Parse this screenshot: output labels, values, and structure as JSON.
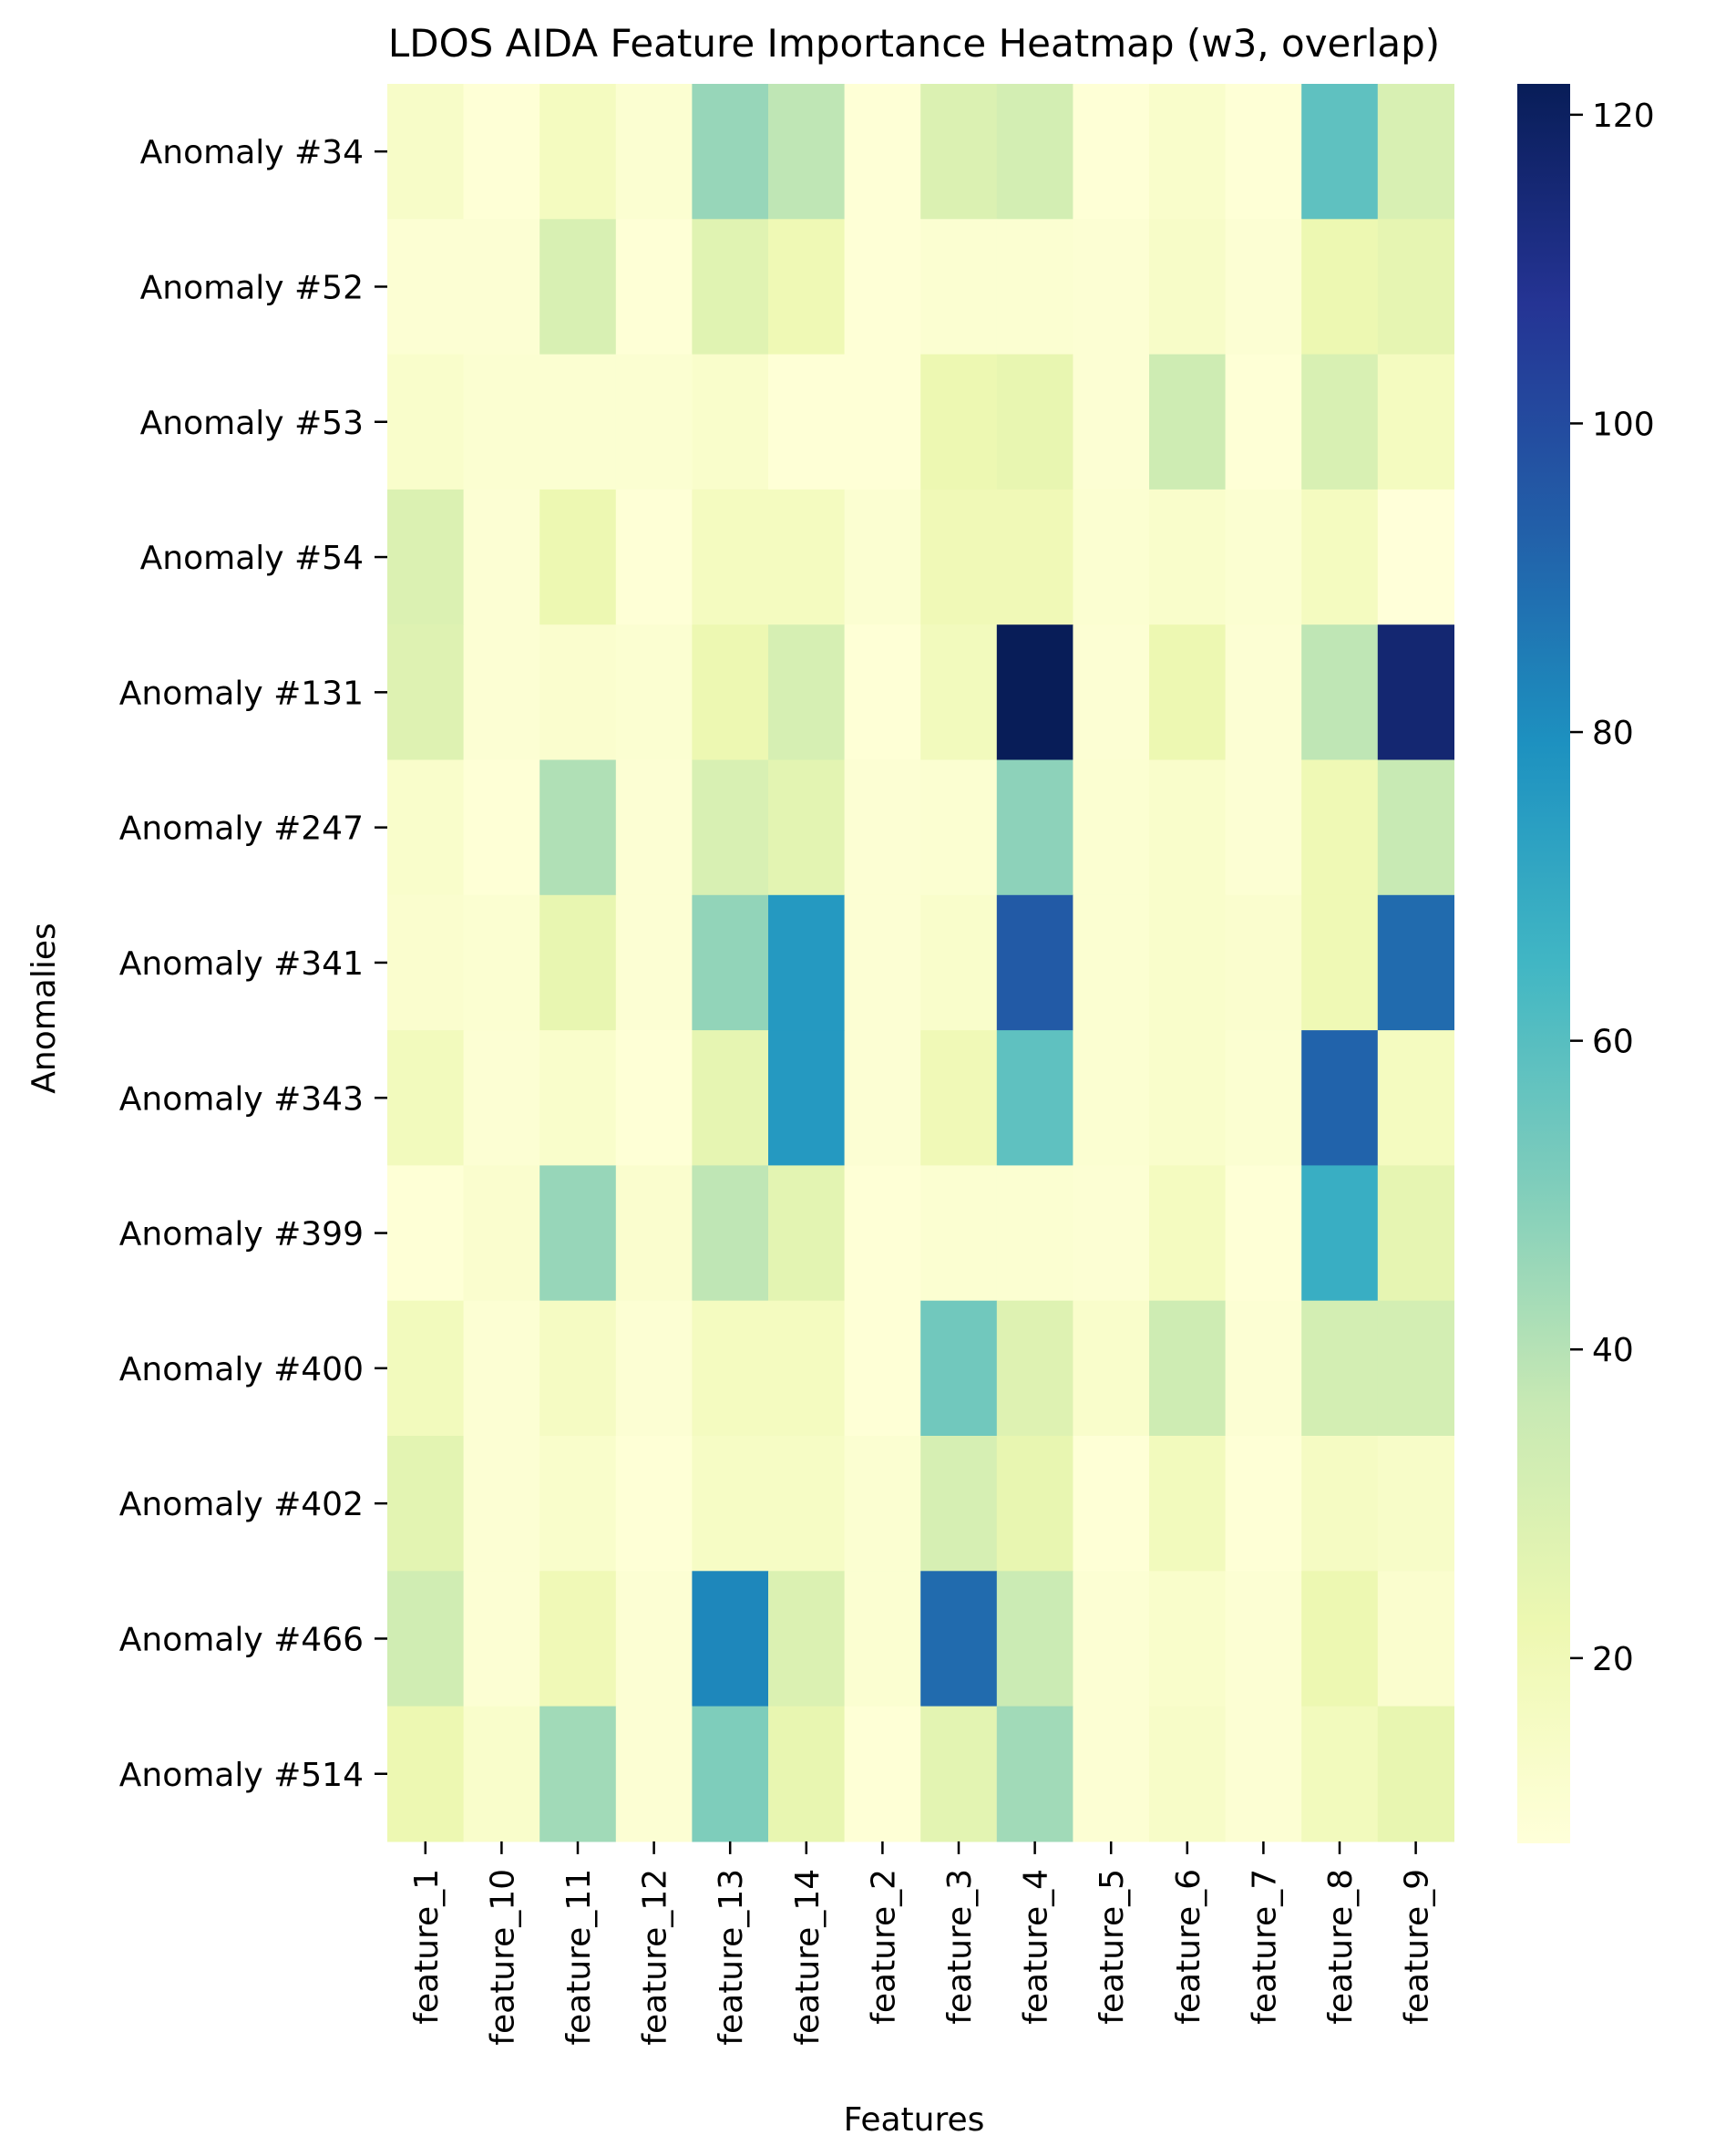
{
  "chart_data": {
    "type": "heatmap",
    "title": "LDOS AIDA Feature Importance Heatmap (w3, overlap)",
    "xlabel": "Features",
    "ylabel": "Anomalies",
    "columns": [
      "feature_1",
      "feature_10",
      "feature_11",
      "feature_12",
      "feature_13",
      "feature_14",
      "feature_2",
      "feature_3",
      "feature_4",
      "feature_5",
      "feature_6",
      "feature_7",
      "feature_8",
      "feature_9"
    ],
    "rows": [
      "Anomaly #34",
      "Anomaly #52",
      "Anomaly #53",
      "Anomaly #54",
      "Anomaly #131",
      "Anomaly #247",
      "Anomaly #341",
      "Anomaly #343",
      "Anomaly #399",
      "Anomaly #400",
      "Anomaly #402",
      "Anomaly #466",
      "Anomaly #514"
    ],
    "values": [
      [
        14,
        9,
        17,
        11,
        46,
        38,
        9,
        29,
        32,
        9,
        13,
        9,
        58,
        30
      ],
      [
        10,
        10,
        30,
        9,
        27,
        21,
        9,
        11,
        11,
        10,
        14,
        10,
        22,
        25
      ],
      [
        13,
        11,
        11,
        11,
        13,
        9,
        9,
        22,
        24,
        10,
        34,
        9,
        30,
        17
      ],
      [
        29,
        10,
        22,
        9,
        17,
        17,
        11,
        20,
        20,
        11,
        13,
        11,
        17,
        8
      ],
      [
        28,
        10,
        12,
        11,
        22,
        31,
        9,
        18,
        122,
        10,
        22,
        10,
        38,
        116
      ],
      [
        13,
        9,
        41,
        10,
        30,
        26,
        10,
        11,
        48,
        11,
        13,
        10,
        21,
        36
      ],
      [
        12,
        11,
        24,
        10,
        47,
        76,
        10,
        13,
        95,
        11,
        13,
        12,
        21,
        90
      ],
      [
        18,
        10,
        13,
        9,
        25,
        76,
        10,
        20,
        58,
        11,
        13,
        11,
        92,
        17
      ],
      [
        9,
        12,
        46,
        12,
        38,
        26,
        9,
        11,
        11,
        10,
        17,
        9,
        68,
        25
      ],
      [
        18,
        10,
        16,
        10,
        17,
        17,
        9,
        54,
        28,
        13,
        34,
        10,
        32,
        32
      ],
      [
        26,
        10,
        13,
        9,
        15,
        15,
        11,
        31,
        24,
        9,
        18,
        9,
        16,
        14
      ],
      [
        33,
        10,
        20,
        10,
        82,
        29,
        11,
        90,
        35,
        10,
        13,
        10,
        22,
        12
      ],
      [
        22,
        13,
        44,
        10,
        51,
        24,
        9,
        26,
        44,
        10,
        14,
        10,
        18,
        24
      ]
    ],
    "colorbar": {
      "colormap": "YlGnBu",
      "vmin": 8,
      "vmax": 122,
      "ticks": [
        20,
        40,
        60,
        80,
        100,
        120
      ]
    }
  }
}
